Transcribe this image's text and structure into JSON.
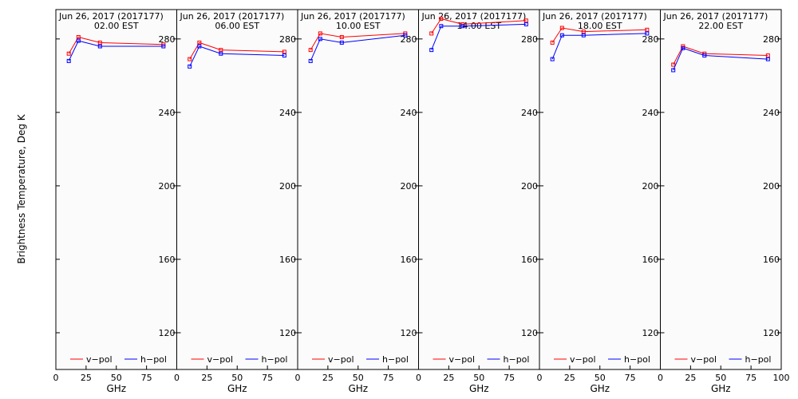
{
  "figure": {
    "ylabel": "Brightness Temperature, Deg K",
    "xlabel": "GHz",
    "legend": {
      "v_pol": "v−pol",
      "h_pol": "h−pol",
      "position": "bottom"
    },
    "colors": {
      "v_pol": "#ff0000",
      "h_pol": "#0000ff",
      "frame": "#000000",
      "background": "#fbfbfb"
    }
  },
  "chart_data": [
    {
      "type": "line",
      "title": "Jun 26, 2017 (2017177)",
      "subtitle": "02.00 EST",
      "xlabel": "GHz",
      "ylabel": "Brightness Temperature, Deg K",
      "xlim": [
        0,
        100
      ],
      "ylim": [
        100,
        296
      ],
      "xticks": [
        "0",
        "25",
        "50",
        "75",
        "100"
      ],
      "yticks": [
        "120",
        "160",
        "200",
        "240",
        "280"
      ],
      "series": [
        {
          "name": "v−pol",
          "color": "#ff0000",
          "x": [
            10.7,
            18.7,
            36.5,
            89.0
          ],
          "y": [
            272,
            281,
            278,
            277
          ]
        },
        {
          "name": "h−pol",
          "color": "#0000ff",
          "x": [
            10.7,
            18.7,
            36.5,
            89.0
          ],
          "y": [
            268,
            279,
            276,
            276
          ]
        }
      ]
    },
    {
      "type": "line",
      "title": "Jun 26, 2017 (2017177)",
      "subtitle": "06.00 EST",
      "xlabel": "GHz",
      "ylabel": "Brightness Temperature, Deg K",
      "xlim": [
        0,
        100
      ],
      "ylim": [
        100,
        296
      ],
      "xticks": [
        "0",
        "25",
        "50",
        "75",
        "100"
      ],
      "yticks": [
        "120",
        "160",
        "200",
        "240",
        "280"
      ],
      "series": [
        {
          "name": "v−pol",
          "color": "#ff0000",
          "x": [
            10.7,
            18.7,
            36.5,
            89.0
          ],
          "y": [
            269,
            278,
            274,
            273
          ]
        },
        {
          "name": "h−pol",
          "color": "#0000ff",
          "x": [
            10.7,
            18.7,
            36.5,
            89.0
          ],
          "y": [
            265,
            276,
            272,
            271
          ]
        }
      ]
    },
    {
      "type": "line",
      "title": "Jun 26, 2017 (2017177)",
      "subtitle": "10.00 EST",
      "xlabel": "GHz",
      "ylabel": "Brightness Temperature, Deg K",
      "xlim": [
        0,
        100
      ],
      "ylim": [
        100,
        296
      ],
      "xticks": [
        "0",
        "25",
        "50",
        "75",
        "100"
      ],
      "yticks": [
        "120",
        "160",
        "200",
        "240",
        "280"
      ],
      "series": [
        {
          "name": "v−pol",
          "color": "#ff0000",
          "x": [
            10.7,
            18.7,
            36.5,
            89.0
          ],
          "y": [
            274,
            283,
            281,
            283
          ]
        },
        {
          "name": "h−pol",
          "color": "#0000ff",
          "x": [
            10.7,
            18.7,
            36.5,
            89.0
          ],
          "y": [
            268,
            280,
            278,
            282
          ]
        }
      ]
    },
    {
      "type": "line",
      "title": "Jun 26, 2017 (2017177)",
      "subtitle": "14.00 EST",
      "xlabel": "GHz",
      "ylabel": "Brightness Temperature, Deg K",
      "xlim": [
        0,
        100
      ],
      "ylim": [
        100,
        296
      ],
      "xticks": [
        "0",
        "25",
        "50",
        "75",
        "100"
      ],
      "yticks": [
        "120",
        "160",
        "200",
        "240",
        "280"
      ],
      "series": [
        {
          "name": "v−pol",
          "color": "#ff0000",
          "x": [
            10.7,
            18.7,
            36.5,
            89.0
          ],
          "y": [
            283,
            291,
            288,
            290
          ]
        },
        {
          "name": "h−pol",
          "color": "#0000ff",
          "x": [
            10.7,
            18.7,
            36.5,
            89.0
          ],
          "y": [
            274,
            287,
            287,
            288
          ]
        }
      ]
    },
    {
      "type": "line",
      "title": "Jun 26, 2017 (2017177)",
      "subtitle": "18.00 EST",
      "xlabel": "GHz",
      "ylabel": "Brightness Temperature, Deg K",
      "xlim": [
        0,
        100
      ],
      "ylim": [
        100,
        296
      ],
      "xticks": [
        "0",
        "25",
        "50",
        "75",
        "100"
      ],
      "yticks": [
        "120",
        "160",
        "200",
        "240",
        "280"
      ],
      "series": [
        {
          "name": "v−pol",
          "color": "#ff0000",
          "x": [
            10.7,
            18.7,
            36.5,
            89.0
          ],
          "y": [
            278,
            286,
            284,
            285
          ]
        },
        {
          "name": "h−pol",
          "color": "#0000ff",
          "x": [
            10.7,
            18.7,
            36.5,
            89.0
          ],
          "y": [
            269,
            282,
            282,
            283
          ]
        }
      ]
    },
    {
      "type": "line",
      "title": "Jun 26, 2017 (2017177)",
      "subtitle": "22.00 EST",
      "xlabel": "GHz",
      "ylabel": "Brightness Temperature, Deg K",
      "xlim": [
        0,
        100
      ],
      "ylim": [
        100,
        296
      ],
      "xticks": [
        "0",
        "25",
        "50",
        "75",
        "100"
      ],
      "yticks": [
        "120",
        "160",
        "200",
        "240",
        "280"
      ],
      "series": [
        {
          "name": "v−pol",
          "color": "#ff0000",
          "x": [
            10.7,
            18.7,
            36.5,
            89.0
          ],
          "y": [
            266,
            276,
            272,
            271
          ]
        },
        {
          "name": "h−pol",
          "color": "#0000ff",
          "x": [
            10.7,
            18.7,
            36.5,
            89.0
          ],
          "y": [
            263,
            275,
            271,
            269
          ]
        }
      ]
    }
  ]
}
